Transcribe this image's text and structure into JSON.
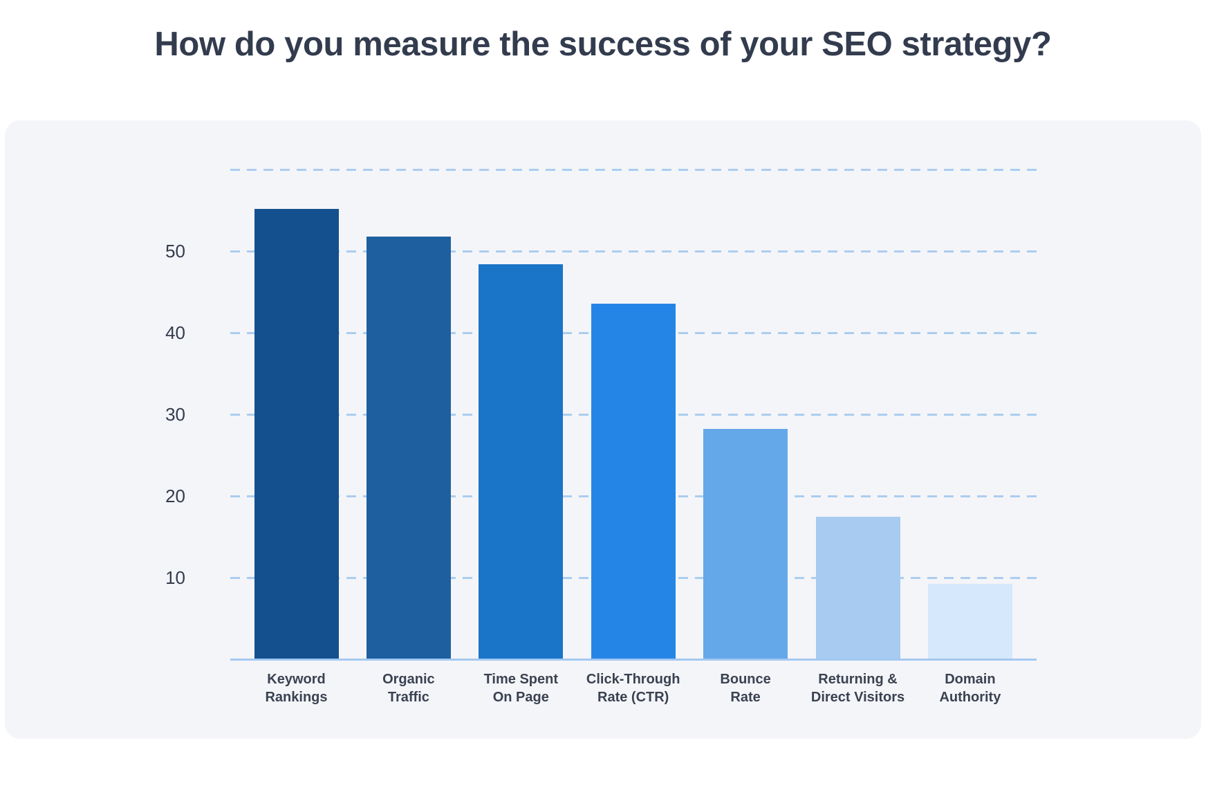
{
  "chart_data": {
    "type": "bar",
    "title": "How do you measure the success of your SEO strategy?",
    "categories": [
      "Keyword Rankings",
      "Organic Traffic",
      "Time Spent On Page",
      "Click-Through Rate (CTR)",
      "Bounce Rate",
      "Returning & Direct Visitors",
      "Domain Authority"
    ],
    "category_lines": [
      [
        "Keyword",
        "Rankings"
      ],
      [
        "Organic",
        "Traffic"
      ],
      [
        "Time Spent",
        "On Page"
      ],
      [
        "Click-Through",
        "Rate (CTR)"
      ],
      [
        "Bounce",
        "Rate"
      ],
      [
        "Returning &",
        "Direct Visitors"
      ],
      [
        "Domain",
        "Authority"
      ]
    ],
    "values": [
      55.2,
      51.8,
      48.4,
      43.6,
      28.2,
      17.5,
      9.2
    ],
    "bar_colors": [
      "#15508e",
      "#1e5f9f",
      "#1a74c8",
      "#2585e6",
      "#64a8ea",
      "#a7cbf1",
      "#d6e8fb"
    ],
    "xlabel": "",
    "ylabel": "",
    "ylim": [
      0,
      60
    ],
    "yticks": [
      10,
      20,
      30,
      40,
      50
    ],
    "gridline_values": [
      10,
      20,
      30,
      40,
      50,
      60
    ],
    "grid_style": "dashed",
    "legend": "none",
    "colors": {
      "page_background": "#ffffff",
      "panel_background": "#f4f5f9",
      "grid": "#abcdee",
      "axis_line": "#a3c8f0",
      "title_text": "#333c4e",
      "tick_text": "#333b4c",
      "label_text": "#3a4250"
    }
  }
}
